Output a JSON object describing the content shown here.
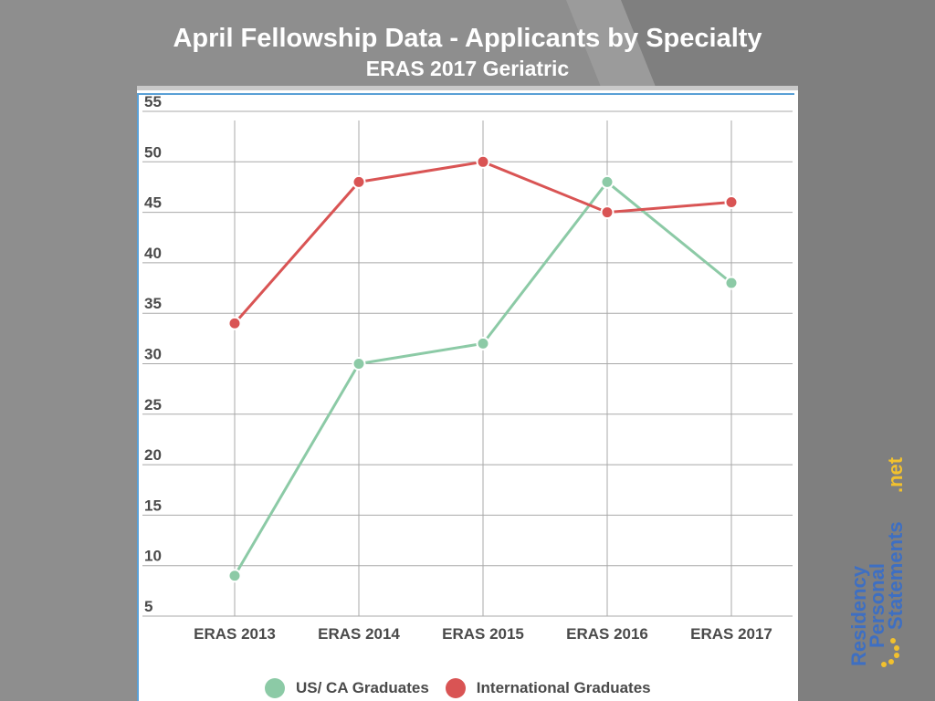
{
  "slide": {
    "title": "April Fellowship Data - Applicants by Specialty",
    "subtitle": "ERAS 2017 Geriatric"
  },
  "colors": {
    "us_ca": "#8ccaa6",
    "international": "#d95454",
    "frame_accent": "#5aa0d6",
    "grid": "#a8a8a8"
  },
  "chart_data": {
    "type": "line",
    "categories": [
      "ERAS 2013",
      "ERAS 2014",
      "ERAS 2015",
      "ERAS 2016",
      "ERAS 2017"
    ],
    "series": [
      {
        "name": "US/ CA Graduates",
        "values": [
          9,
          30,
          32,
          48,
          38
        ]
      },
      {
        "name": "International Graduates",
        "values": [
          34,
          48,
          50,
          45,
          46
        ]
      }
    ],
    "y_ticks": [
      5,
      10,
      15,
      20,
      25,
      30,
      35,
      40,
      45,
      50,
      55
    ],
    "ylim": [
      5,
      55
    ],
    "grid": true,
    "legend_position": "bottom"
  },
  "logo": {
    "line1": "Residency",
    "line2": "Personal",
    "line3": "Statements",
    "suffix": ".net"
  }
}
